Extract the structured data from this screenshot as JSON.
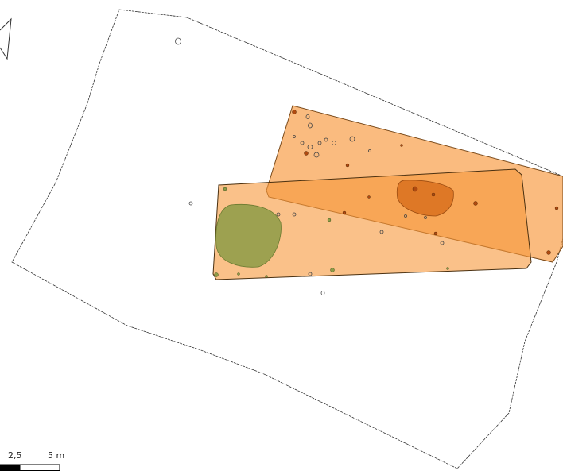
{
  "scale_bar": {
    "labels": [
      "2,5",
      "5 m"
    ]
  }
}
